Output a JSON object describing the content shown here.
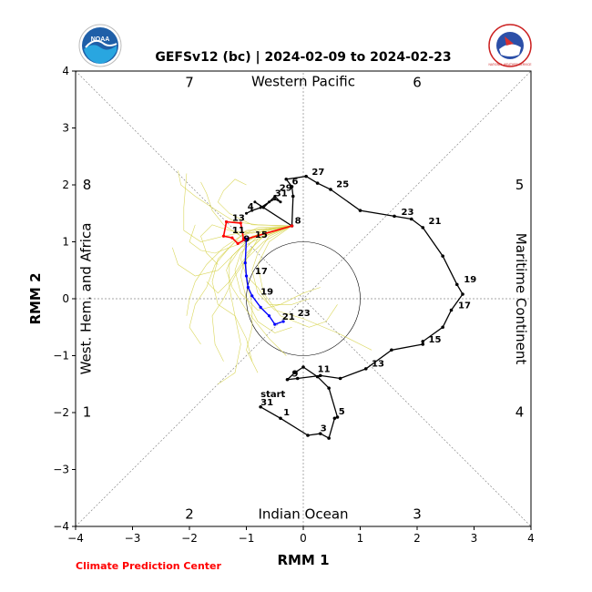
{
  "header": {
    "title": "GEFSv12 (bc) | 2024-02-09 to 2024-02-23",
    "credit": "Climate Prediction Center",
    "noaa_logo_text": "NOAA",
    "nws_logo_text": "NATIONAL WEATHER SERVICE"
  },
  "chart_data": {
    "type": "line",
    "xlabel": "RMM 1",
    "ylabel": "RMM 2",
    "xlim": [
      -4,
      4
    ],
    "ylim": [
      -4,
      4
    ],
    "ticks": [
      -4,
      -3,
      -2,
      -1,
      0,
      1,
      2,
      3,
      4
    ],
    "tick_labels": [
      "−4",
      "−3",
      "−2",
      "−1",
      "0",
      "1",
      "2",
      "3",
      "4"
    ],
    "region_labels": {
      "top": "Western Pacific",
      "bottom": "Indian Ocean",
      "left": "West. Hem. and Africa",
      "right": "Maritime Continent"
    },
    "phase_labels": [
      {
        "phase": "1",
        "x": -3.8,
        "y": -1.99
      },
      {
        "phase": "2",
        "x": -2.0,
        "y": -3.78
      },
      {
        "phase": "3",
        "x": 2.0,
        "y": -3.78
      },
      {
        "phase": "4",
        "x": 3.8,
        "y": -1.99
      },
      {
        "phase": "5",
        "x": 3.8,
        "y": 2.0
      },
      {
        "phase": "6",
        "x": 2.0,
        "y": 3.8
      },
      {
        "phase": "7",
        "x": -2.0,
        "y": 3.8
      },
      {
        "phase": "8",
        "x": -3.8,
        "y": 2.0
      }
    ],
    "unit_circle_radius": 1,
    "colors": {
      "observed": "#000000",
      "forecast_week1": "#ff0000",
      "forecast_week2": "#0000ff",
      "ensemble": "#d4d040",
      "grid": "#888888"
    },
    "observed": {
      "points": [
        [
          -0.75,
          -1.9
        ],
        [
          -0.4,
          -2.1
        ],
        [
          0.08,
          -2.4
        ],
        [
          0.3,
          -2.37
        ],
        [
          0.45,
          -2.45
        ],
        [
          0.55,
          -2.1
        ],
        [
          0.6,
          -2.08
        ],
        [
          0.45,
          -1.57
        ],
        [
          0.25,
          -1.37
        ],
        [
          0.0,
          -1.2
        ],
        [
          -0.15,
          -1.3
        ],
        [
          -0.28,
          -1.42
        ],
        [
          -0.1,
          -1.4
        ],
        [
          0.3,
          -1.35
        ],
        [
          0.65,
          -1.4
        ],
        [
          1.1,
          -1.23
        ],
        [
          1.55,
          -0.9
        ],
        [
          2.1,
          -0.8
        ],
        [
          2.1,
          -0.75
        ],
        [
          2.45,
          -0.5
        ],
        [
          2.6,
          -0.2
        ],
        [
          2.8,
          0.08
        ],
        [
          2.7,
          0.25
        ],
        [
          2.45,
          0.75
        ],
        [
          2.1,
          1.25
        ],
        [
          1.9,
          1.4
        ],
        [
          1.6,
          1.45
        ],
        [
          1.0,
          1.55
        ],
        [
          0.48,
          1.92
        ],
        [
          0.25,
          2.03
        ],
        [
          0.05,
          2.15
        ],
        [
          -0.3,
          2.1
        ],
        [
          -0.2,
          1.97
        ],
        [
          -0.18,
          1.8
        ],
        [
          -0.2,
          1.28
        ]
      ],
      "labels": [
        {
          "text": "start",
          "x": -0.75,
          "y": -1.73
        },
        {
          "text": "31",
          "x": -0.75,
          "y": -1.87
        },
        {
          "text": "1",
          "x": -0.35,
          "y": -2.05
        },
        {
          "text": "3",
          "x": 0.3,
          "y": -2.33
        },
        {
          "text": "5",
          "x": 0.62,
          "y": -2.03
        },
        {
          "text": "9",
          "x": -0.2,
          "y": -1.37
        },
        {
          "text": "11",
          "x": 0.25,
          "y": -1.29
        },
        {
          "text": "13",
          "x": 1.2,
          "y": -1.19
        },
        {
          "text": "15",
          "x": 2.2,
          "y": -0.77
        },
        {
          "text": "17",
          "x": 2.72,
          "y": -0.17
        },
        {
          "text": "19",
          "x": 2.82,
          "y": 0.29
        },
        {
          "text": "21",
          "x": 2.2,
          "y": 1.31
        },
        {
          "text": "23",
          "x": 1.72,
          "y": 1.47
        },
        {
          "text": "25",
          "x": 0.58,
          "y": 1.96
        },
        {
          "text": "27",
          "x": 0.15,
          "y": 2.18
        },
        {
          "text": "29",
          "x": -0.42,
          "y": 1.9
        },
        {
          "text": "31",
          "x": -0.5,
          "y": 1.8
        },
        {
          "text": "6",
          "x": -0.2,
          "y": 2.01
        },
        {
          "text": "4",
          "x": -0.98,
          "y": 1.57
        },
        {
          "text": "8",
          "x": -0.15,
          "y": 1.32
        }
      ]
    },
    "observed_tail": [
      [
        -0.2,
        1.28
      ],
      [
        -0.85,
        1.7
      ],
      [
        -0.7,
        1.6
      ],
      [
        -0.5,
        1.8
      ],
      [
        -0.4,
        1.7
      ],
      [
        -0.5,
        1.75
      ],
      [
        -0.6,
        1.7
      ],
      [
        -0.75,
        1.6
      ],
      [
        -0.9,
        1.55
      ],
      [
        -1.0,
        1.5
      ]
    ],
    "forecast_week1": {
      "points": [
        [
          -0.2,
          1.28
        ],
        [
          -1.0,
          1.05
        ],
        [
          -1.15,
          0.97
        ],
        [
          -1.25,
          1.07
        ],
        [
          -1.4,
          1.1
        ],
        [
          -1.35,
          1.35
        ],
        [
          -1.1,
          1.33
        ],
        [
          -1.05,
          1.05
        ],
        [
          -1.0,
          1.05
        ]
      ],
      "labels": [
        {
          "text": "9",
          "x": -1.05,
          "y": 1.0
        },
        {
          "text": "11",
          "x": -1.25,
          "y": 1.15
        },
        {
          "text": "13",
          "x": -1.25,
          "y": 1.37
        },
        {
          "text": "15",
          "x": -0.85,
          "y": 1.07
        }
      ]
    },
    "forecast_week2": {
      "points": [
        [
          -1.0,
          1.05
        ],
        [
          -1.02,
          0.63
        ],
        [
          -1.0,
          0.4
        ],
        [
          -0.97,
          0.2
        ],
        [
          -0.9,
          0.05
        ],
        [
          -0.75,
          -0.15
        ],
        [
          -0.6,
          -0.3
        ],
        [
          -0.5,
          -0.45
        ],
        [
          -0.35,
          -0.4
        ]
      ],
      "labels": [
        {
          "text": "17",
          "x": -0.85,
          "y": 0.43
        },
        {
          "text": "19",
          "x": -0.75,
          "y": 0.07
        },
        {
          "text": "21",
          "x": -0.37,
          "y": -0.37
        },
        {
          "text": "23",
          "x": -0.1,
          "y": -0.3
        }
      ]
    },
    "ensemble_members": [
      [
        [
          -0.2,
          1.28
        ],
        [
          -0.7,
          1.2
        ],
        [
          -1.0,
          1.0
        ],
        [
          -1.3,
          0.9
        ],
        [
          -1.55,
          0.8
        ],
        [
          -1.8,
          0.85
        ],
        [
          -2.0,
          1.0
        ],
        [
          -1.9,
          1.3
        ]
      ],
      [
        [
          -0.2,
          1.28
        ],
        [
          -0.8,
          1.2
        ],
        [
          -1.1,
          1.1
        ],
        [
          -1.4,
          1.3
        ],
        [
          -1.6,
          1.55
        ],
        [
          -1.7,
          1.85
        ],
        [
          -1.8,
          2.05
        ]
      ],
      [
        [
          -0.2,
          1.28
        ],
        [
          -0.6,
          1.2
        ],
        [
          -0.9,
          0.9
        ],
        [
          -1.1,
          0.6
        ],
        [
          -1.3,
          0.3
        ],
        [
          -1.5,
          0.1
        ],
        [
          -1.7,
          0.3
        ]
      ],
      [
        [
          -0.2,
          1.28
        ],
        [
          -0.7,
          1.1
        ],
        [
          -1.0,
          0.8
        ],
        [
          -1.1,
          0.4
        ],
        [
          -1.0,
          0.0
        ],
        [
          -0.8,
          -0.4
        ],
        [
          -0.5,
          -0.6
        ],
        [
          -0.2,
          -0.5
        ]
      ],
      [
        [
          -0.2,
          1.28
        ],
        [
          -0.9,
          1.3
        ],
        [
          -1.3,
          1.5
        ],
        [
          -1.5,
          1.7
        ],
        [
          -1.4,
          1.9
        ],
        [
          -1.2,
          2.1
        ],
        [
          -1.0,
          2.0
        ]
      ],
      [
        [
          -0.2,
          1.28
        ],
        [
          -0.8,
          1.1
        ],
        [
          -1.2,
          1.0
        ],
        [
          -1.5,
          0.7
        ],
        [
          -1.6,
          0.3
        ],
        [
          -1.5,
          -0.1
        ],
        [
          -1.2,
          -0.3
        ],
        [
          -1.0,
          -0.7
        ],
        [
          -0.9,
          -1.1
        ]
      ],
      [
        [
          -0.2,
          1.28
        ],
        [
          -0.7,
          1.0
        ],
        [
          -1.0,
          0.7
        ],
        [
          -1.2,
          0.4
        ],
        [
          -1.4,
          0.0
        ],
        [
          -1.6,
          -0.3
        ],
        [
          -1.55,
          -0.8
        ],
        [
          -1.4,
          -1.1
        ]
      ],
      [
        [
          -0.2,
          1.28
        ],
        [
          -0.6,
          1.0
        ],
        [
          -0.8,
          0.6
        ],
        [
          -0.7,
          0.1
        ],
        [
          -0.4,
          -0.3
        ],
        [
          0.1,
          -0.5
        ],
        [
          0.4,
          -0.4
        ],
        [
          0.6,
          -0.1
        ]
      ],
      [
        [
          -0.2,
          1.28
        ],
        [
          -0.9,
          1.2
        ],
        [
          -1.4,
          1.1
        ],
        [
          -1.8,
          1.0
        ],
        [
          -2.1,
          1.2
        ],
        [
          -2.1,
          1.6
        ],
        [
          -2.05,
          2.2
        ]
      ],
      [
        [
          -0.2,
          1.28
        ],
        [
          -1.0,
          1.2
        ],
        [
          -1.3,
          0.9
        ],
        [
          -1.55,
          0.6
        ],
        [
          -1.7,
          0.2
        ],
        [
          -1.9,
          -0.1
        ],
        [
          -2.0,
          -0.5
        ],
        [
          -1.8,
          -0.8
        ]
      ],
      [
        [
          -0.2,
          1.28
        ],
        [
          -0.8,
          1.1
        ],
        [
          -1.1,
          0.8
        ],
        [
          -1.2,
          0.5
        ],
        [
          -1.1,
          0.1
        ],
        [
          -0.8,
          -0.2
        ],
        [
          -0.4,
          -0.1
        ],
        [
          0.0,
          0.1
        ],
        [
          0.3,
          0.2
        ]
      ],
      [
        [
          -0.2,
          1.28
        ],
        [
          -0.7,
          1.2
        ],
        [
          -1.0,
          1.0
        ],
        [
          -1.25,
          0.75
        ],
        [
          -1.35,
          0.5
        ],
        [
          -1.25,
          0.2
        ],
        [
          -1.0,
          -0.2
        ],
        [
          -0.6,
          -0.7
        ],
        [
          -0.3,
          -1.0
        ]
      ],
      [
        [
          -0.2,
          1.28
        ],
        [
          -0.8,
          1.3
        ],
        [
          -1.2,
          1.35
        ],
        [
          -1.6,
          1.6
        ],
        [
          -1.9,
          1.8
        ],
        [
          -2.15,
          2.0
        ],
        [
          -2.2,
          2.25
        ]
      ],
      [
        [
          -0.2,
          1.28
        ],
        [
          -0.7,
          1.1
        ],
        [
          -1.1,
          0.9
        ],
        [
          -1.3,
          0.6
        ],
        [
          -1.3,
          0.2
        ],
        [
          -1.2,
          -0.3
        ],
        [
          -1.1,
          -0.8
        ],
        [
          -1.2,
          -1.3
        ],
        [
          -1.5,
          -1.5
        ]
      ],
      [
        [
          -0.2,
          1.28
        ],
        [
          -0.9,
          1.1
        ],
        [
          -1.2,
          0.8
        ],
        [
          -1.5,
          0.5
        ],
        [
          -1.9,
          0.4
        ],
        [
          -2.2,
          0.6
        ],
        [
          -2.3,
          0.9
        ]
      ],
      [
        [
          -0.2,
          1.28
        ],
        [
          -0.6,
          1.1
        ],
        [
          -0.8,
          0.8
        ],
        [
          -0.9,
          0.5
        ],
        [
          -0.8,
          0.1
        ],
        [
          -0.5,
          -0.2
        ],
        [
          0.0,
          -0.35
        ],
        [
          0.6,
          -0.6
        ],
        [
          1.2,
          -0.9
        ]
      ],
      [
        [
          -0.2,
          1.28
        ],
        [
          -0.8,
          1.25
        ],
        [
          -1.1,
          1.1
        ],
        [
          -1.4,
          0.9
        ],
        [
          -1.7,
          0.6
        ],
        [
          -1.9,
          0.3
        ],
        [
          -2.0,
          0.0
        ],
        [
          -2.05,
          -0.3
        ]
      ],
      [
        [
          -0.2,
          1.28
        ],
        [
          -0.7,
          1.15
        ],
        [
          -1.0,
          1.0
        ],
        [
          -1.1,
          0.7
        ],
        [
          -1.0,
          0.4
        ],
        [
          -0.8,
          0.2
        ],
        [
          -0.6,
          -0.1
        ],
        [
          -0.2,
          -0.1
        ],
        [
          0.1,
          0.0
        ]
      ],
      [
        [
          -0.2,
          1.28
        ],
        [
          -0.9,
          1.15
        ],
        [
          -1.3,
          1.2
        ],
        [
          -1.6,
          1.3
        ],
        [
          -1.8,
          1.1
        ],
        [
          -1.7,
          0.8
        ],
        [
          -1.5,
          0.6
        ]
      ],
      [
        [
          -0.2,
          1.28
        ],
        [
          -0.8,
          1.05
        ],
        [
          -1.0,
          0.7
        ],
        [
          -1.0,
          0.3
        ],
        [
          -0.9,
          -0.1
        ],
        [
          -0.9,
          -0.5
        ],
        [
          -1.0,
          -0.9
        ],
        [
          -0.8,
          -1.3
        ]
      ]
    ]
  }
}
